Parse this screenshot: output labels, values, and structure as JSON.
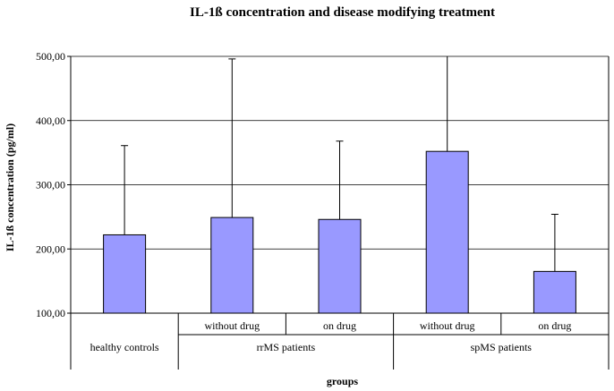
{
  "chart_data": {
    "type": "bar",
    "title": "IL-1ß concentration and disease modifying treatment",
    "xlabel": "groups",
    "ylabel": "IL-1ß concentration (pg/ml)",
    "ylim": [
      100,
      500
    ],
    "yticks": [
      "100,00",
      "200,00",
      "300,00",
      "400,00",
      "500,00"
    ],
    "grid": "horizontal",
    "groups": [
      {
        "name": "healthy controls",
        "subcategories": [
          ""
        ]
      },
      {
        "name": "rrMS patients",
        "subcategories": [
          "without drug",
          "on drug"
        ]
      },
      {
        "name": "spMS patients",
        "subcategories": [
          "without drug",
          "on drug"
        ]
      }
    ],
    "values": [
      222,
      249,
      246,
      352,
      165
    ],
    "error_upper": [
      361,
      496,
      368,
      500,
      254
    ],
    "colors": {
      "bar": "#9999ff",
      "bar_stroke": "#000000",
      "grid": "#000000"
    }
  }
}
